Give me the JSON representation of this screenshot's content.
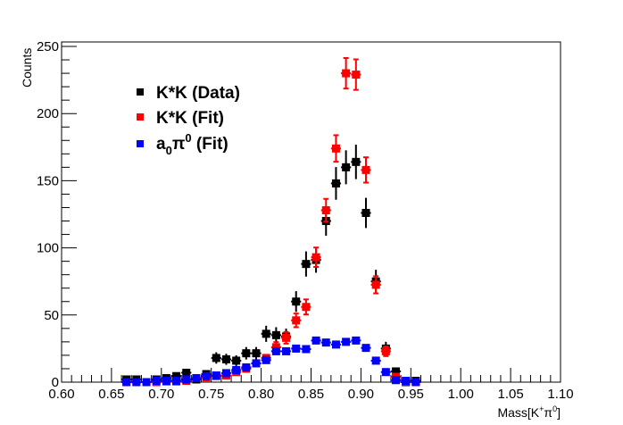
{
  "chart_data": {
    "type": "scatter",
    "title": "",
    "xlabel": "Mass[K⁺π⁰]",
    "xlabel_parts": {
      "base": "Mass[K",
      "sup1": "+",
      "mid": "π",
      "sup2": "0",
      "end": "]"
    },
    "ylabel": "Counts",
    "xlim": [
      0.6,
      1.1
    ],
    "ylim": [
      0,
      253
    ],
    "grid": false,
    "legend_position": "top-left",
    "x_ticks": [
      "0.60",
      "0.65",
      "0.70",
      "0.75",
      "0.80",
      "0.85",
      "0.90",
      "0.95",
      "1.00",
      "1.05",
      "1.10"
    ],
    "y_ticks": [
      "0",
      "50",
      "100",
      "150",
      "200",
      "250"
    ],
    "x": [
      0.665,
      0.675,
      0.685,
      0.695,
      0.705,
      0.715,
      0.725,
      0.735,
      0.745,
      0.755,
      0.765,
      0.775,
      0.785,
      0.795,
      0.805,
      0.815,
      0.825,
      0.835,
      0.845,
      0.855,
      0.865,
      0.875,
      0.885,
      0.895,
      0.905,
      0.915,
      0.925,
      0.935,
      0.945,
      0.955
    ],
    "series": [
      {
        "name": "K*K (Data)",
        "legend_parts": {
          "text": "K*K (Data)"
        },
        "color": "#000000",
        "values": [
          2,
          2,
          0,
          2,
          3,
          4.5,
          7,
          2,
          6,
          18,
          17,
          16,
          21.5,
          21.5,
          36,
          35,
          34,
          60,
          88,
          91,
          120,
          148,
          160,
          164,
          126,
          75,
          25,
          8,
          0,
          1
        ]
      },
      {
        "name": "K*K (Fit)",
        "legend_parts": {
          "text": "K*K (Fit)"
        },
        "color": "#ff0000",
        "values": [
          0,
          0,
          0,
          0,
          0.5,
          0.5,
          1,
          3,
          3.5,
          4.5,
          5,
          7.5,
          10,
          14,
          18,
          26,
          33,
          46,
          56,
          93,
          128,
          174,
          230,
          229,
          158,
          72.5,
          23,
          4,
          0.5,
          0
        ]
      },
      {
        "name": "a0π0 (Fit)",
        "legend_parts": {
          "a": "a",
          "sub": "0",
          "pi": "π",
          "sup": "0",
          "rest": " (Fit)"
        },
        "color": "#0000ff",
        "values": [
          0,
          0,
          0,
          1,
          1,
          1,
          2,
          3,
          4.5,
          5,
          6.7,
          9,
          11,
          14,
          16.4,
          23,
          23,
          25,
          24.6,
          31,
          29.5,
          28,
          30,
          31,
          25.5,
          16,
          7.5,
          1.5,
          1,
          0
        ]
      }
    ]
  }
}
